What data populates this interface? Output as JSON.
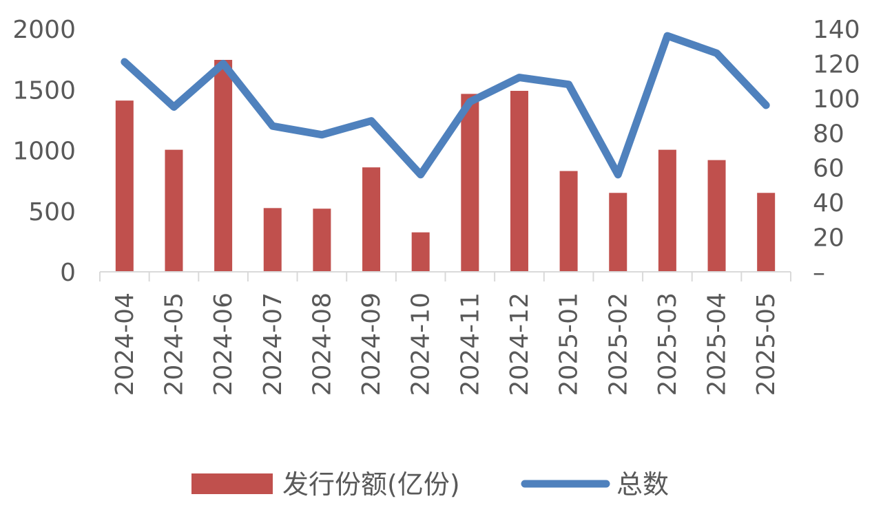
{
  "chart_data": {
    "type": "bar+line",
    "categories": [
      "2024-04",
      "2024-05",
      "2024-06",
      "2024-07",
      "2024-08",
      "2024-09",
      "2024-10",
      "2024-11",
      "2024-12",
      "2025-01",
      "2025-02",
      "2025-03",
      "2025-04",
      "2025-05"
    ],
    "series": [
      {
        "name": "发行份额(亿份)",
        "type": "bar",
        "axis": "left",
        "color": "#C0504D",
        "values": [
          1410,
          1005,
          1745,
          525,
          520,
          860,
          325,
          1465,
          1490,
          830,
          650,
          1005,
          920,
          650
        ]
      },
      {
        "name": "总数",
        "type": "line",
        "axis": "right",
        "color": "#4F81BD",
        "values": [
          121,
          95,
          120,
          84,
          79,
          87,
          56,
          98,
          112,
          108,
          56,
          136,
          126,
          96
        ]
      }
    ],
    "yLeft": {
      "min": 0,
      "max": 2000,
      "ticks": [
        "0",
        "500",
        "1000",
        "1500",
        "2000"
      ]
    },
    "yRight": {
      "min": 0,
      "max": 140,
      "ticks": [
        "–",
        "20",
        "40",
        "60",
        "80",
        "100",
        "120",
        "140"
      ]
    },
    "legend": {
      "placement": "bottom"
    }
  }
}
